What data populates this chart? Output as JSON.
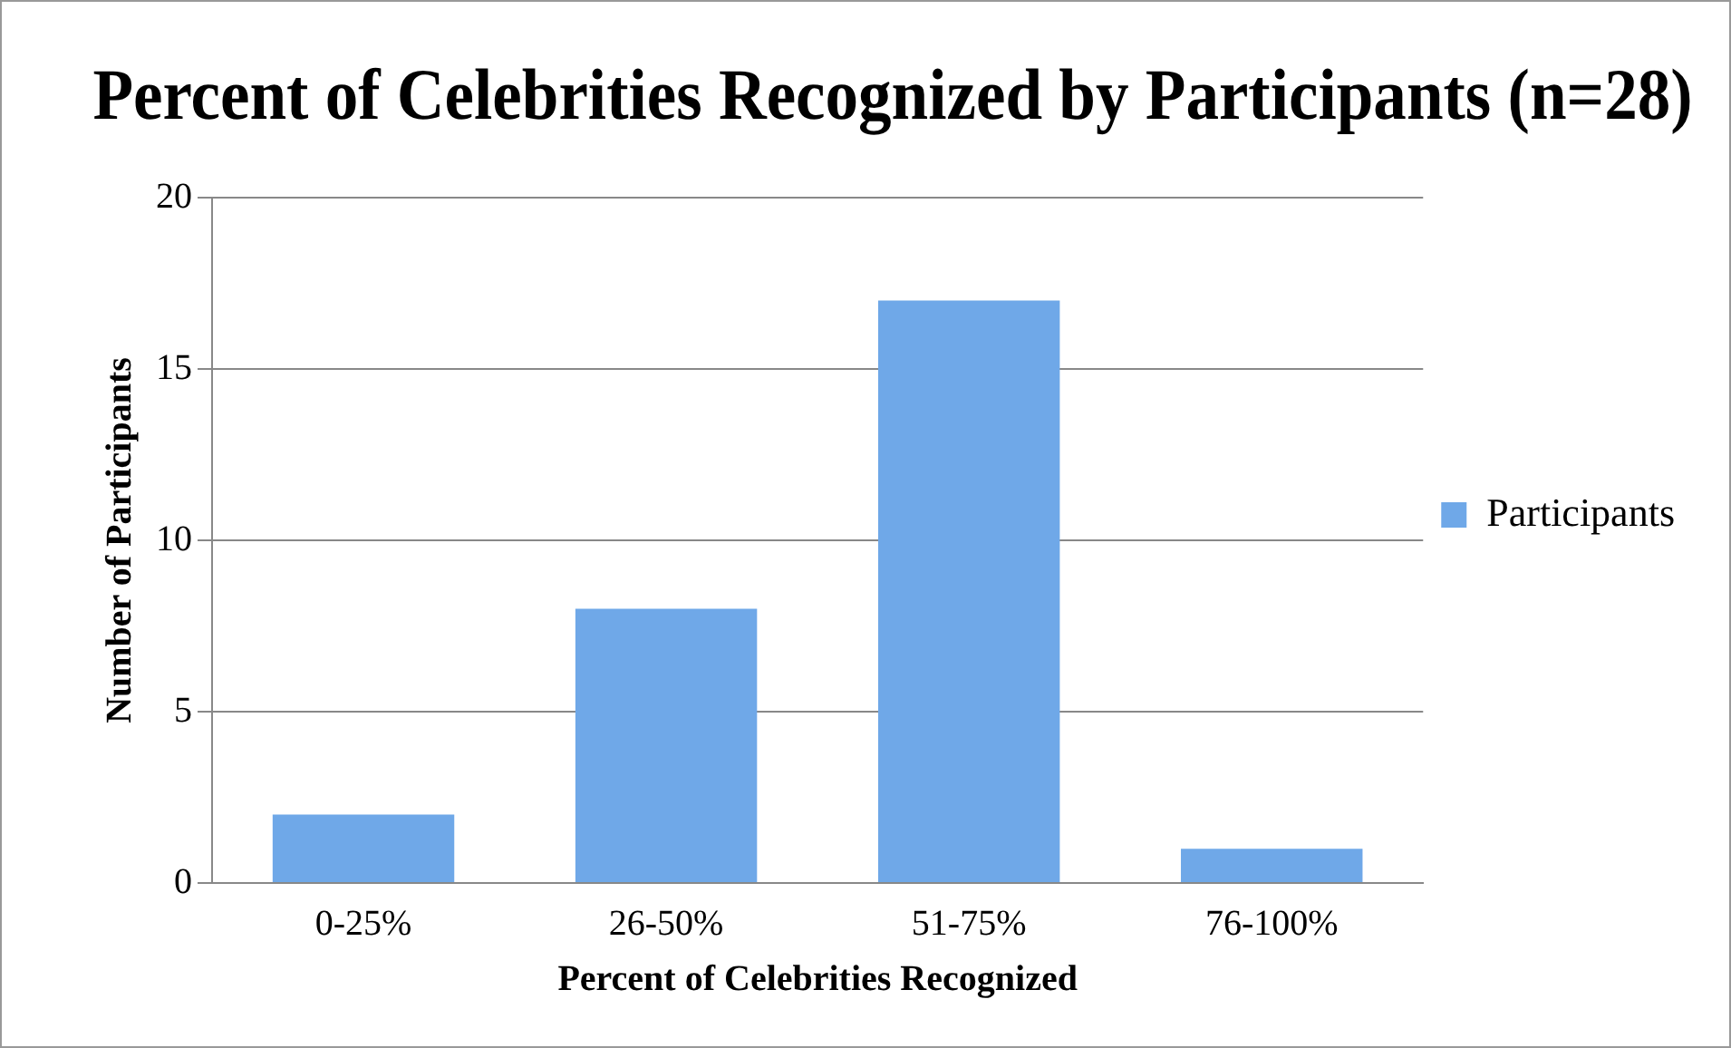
{
  "chart_data": {
    "type": "bar",
    "title": "Percent of Celebrities Recognized by Participants (n=28)",
    "xlabel": "Percent of Celebrities Recognized",
    "ylabel": "Number of Participants",
    "categories": [
      "0-25%",
      "26-50%",
      "51-75%",
      "76-100%"
    ],
    "series": [
      {
        "name": "Participants",
        "color": "#6fa8e8",
        "values": [
          2,
          8,
          17,
          1
        ]
      }
    ],
    "ylim": [
      0,
      20
    ],
    "yticks": [
      0,
      5,
      10,
      15,
      20
    ],
    "grid": "y",
    "legend": "right"
  }
}
